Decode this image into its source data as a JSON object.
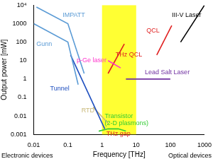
{
  "chart_data": {
    "type": "line",
    "xlabel": "Frequency [THz]",
    "ylabel": "Output power [mW]",
    "log": true,
    "grid": false,
    "xlim": [
      0.01,
      1000
    ],
    "xticks": [
      0.01,
      0.1,
      1,
      10,
      100,
      1000
    ],
    "ylim": [
      0.001,
      10000
    ],
    "yticks": [
      0.001,
      0.01,
      0.1,
      1,
      10,
      100,
      1000,
      {
        "value": 10000,
        "label": "10⁴"
      }
    ],
    "series": [
      {
        "name": "IMPATT",
        "color": "#5b9bd5",
        "x": [
          0.012,
          0.1,
          0.3
        ],
        "values": [
          8000,
          1000,
          2
        ],
        "label_at": [
          0.07,
          3000
        ]
      },
      {
        "name": "Gunn",
        "color": "#5b9bd5",
        "x": [
          0.01,
          0.1,
          0.2
        ],
        "values": [
          1000,
          100,
          0.5
        ],
        "label_at": [
          0.012,
          80
        ]
      },
      {
        "name": "Tunnel",
        "color": "#1f4fbf",
        "x": [
          0.12,
          1.2
        ],
        "values": [
          20,
          0.002
        ],
        "label_at": [
          0.03,
          0.3
        ]
      },
      {
        "name": "RTD",
        "color": "#c8b878",
        "x": [
          0.55,
          1.5
        ],
        "values": [
          0.03,
          0.004
        ],
        "label_at": [
          0.25,
          0.02
        ]
      },
      {
        "name": "Transistor (2-D plasmons)",
        "color": "#33cc33",
        "x": [
          0.8,
          1.5,
          3,
          5
        ],
        "values": [
          0.0015,
          0.002,
          0.002,
          0.0015
        ],
        "label_at": [
          1.2,
          0.006
        ]
      },
      {
        "name": "p-Ge laser",
        "color": "#ff33cc",
        "x": [
          1.5,
          3.5
        ],
        "values": [
          10,
          4
        ],
        "label_at": [
          0.18,
          10
        ]
      },
      {
        "name": "THz QCL",
        "color": "#e02020",
        "x": [
          1.5,
          4.5
        ],
        "values": [
          2,
          80
        ],
        "label_at": [
          2.5,
          20
        ]
      },
      {
        "name": "QCL",
        "color": "#e02020",
        "x": [
          40,
          110
        ],
        "values": [
          20,
          800
        ],
        "label_at": [
          20,
          400
        ]
      },
      {
        "name": "III-V Laser",
        "color": "#000000",
        "x": [
          200,
          1000
        ],
        "values": [
          100,
          10000
        ],
        "label_at": [
          110,
          3000
        ]
      },
      {
        "name": "Lead Salt Laser",
        "color": "#7030a0",
        "x": [
          5,
          100
        ],
        "values": [
          1,
          1
        ],
        "label_at": [
          18,
          2.2
        ]
      }
    ],
    "shaded_band": {
      "x": [
        1,
        10
      ],
      "color": "#ffff33"
    },
    "annotations": [
      {
        "text": "THz gap",
        "x": 3,
        "y": 0.0011,
        "color": "#e02020"
      }
    ],
    "x_notes": [
      "Electronic devices",
      "Optical devices"
    ]
  }
}
